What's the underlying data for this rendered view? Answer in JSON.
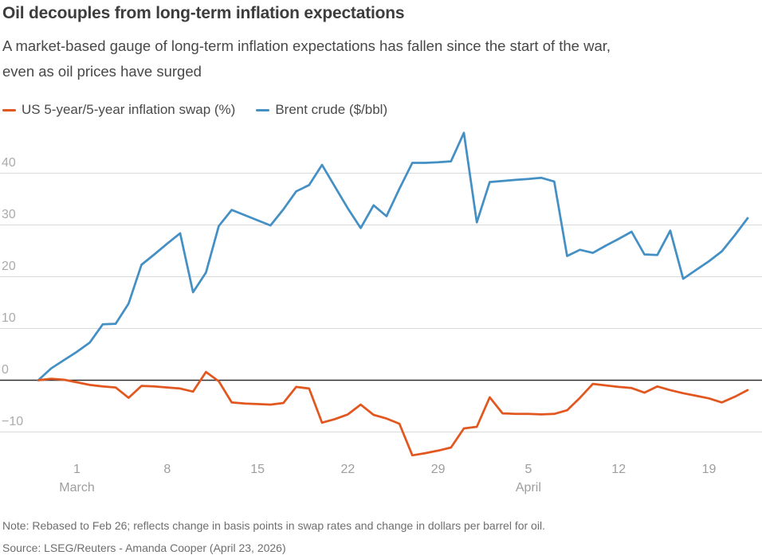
{
  "header": {
    "title": "Oil decouples from long-term inflation expectations",
    "subtitle_line1": "A market-based gauge of long-term inflation expectations has fallen since the start of the war,",
    "subtitle_line2": "even as oil prices have surged"
  },
  "footer": {
    "note": "Note: Rebased to Feb 26; reflects change in basis points in swap rates and change in dollars per barrel for oil.",
    "source": "Source: LSEG/Reuters - Amanda Cooper (April 23, 2026)"
  },
  "chart_data": {
    "type": "line",
    "x_axis": {
      "start": "Feb 26",
      "frequency": "daily",
      "ticks": [
        {
          "label": "1",
          "index": 3,
          "month": "March"
        },
        {
          "label": "8",
          "index": 10
        },
        {
          "label": "15",
          "index": 17
        },
        {
          "label": "22",
          "index": 24
        },
        {
          "label": "29",
          "index": 31
        },
        {
          "label": "5",
          "index": 38,
          "month": "April"
        },
        {
          "label": "12",
          "index": 45
        },
        {
          "label": "19",
          "index": 52
        }
      ]
    },
    "y_axis": {
      "ticks": [
        40,
        30,
        20,
        10,
        0,
        -10
      ],
      "tick_labels": [
        "40",
        "30",
        "20",
        "10",
        "0",
        "−10"
      ],
      "range": [
        -16.5,
        48.5
      ],
      "grid": "horizontal"
    },
    "grid_color": "#d9d9d9",
    "zero_line_color": "#2e2e2e",
    "series": [
      {
        "key": "swap",
        "name": "US 5-year/5-year inflation swap (%)",
        "color": "#e2571f",
        "values": [
          0,
          0.3,
          0.1,
          -0.4,
          -0.9,
          -1.2,
          -1.4,
          -3.4,
          -1.1,
          -1.2,
          -1.4,
          -1.6,
          -2.2,
          1.6,
          -0.2,
          -4.3,
          -4.5,
          -4.6,
          -4.7,
          -4.4,
          -1.3,
          -1.6,
          -8.2,
          -7.5,
          -6.6,
          -4.7,
          -6.7,
          -7.4,
          -8.4,
          -14.5,
          -14.1,
          -13.6,
          -13.0,
          -9.3,
          -9.0,
          -3.3,
          -6.4,
          -6.5,
          -6.5,
          -6.6,
          -6.5,
          -5.8,
          -3.4,
          -0.7,
          -1.0,
          -1.3,
          -1.5,
          -2.4,
          -1.2,
          -1.9,
          -2.5,
          -3.0,
          -3.5,
          -4.3,
          -3.2,
          -1.9
        ]
      },
      {
        "key": "brent",
        "name": "Brent crude ($/bbl)",
        "color": "#4490c4",
        "values": [
          0,
          2.3,
          3.9,
          5.5,
          7.3,
          10.8,
          10.9,
          14.8,
          22.3,
          24.3,
          26.4,
          28.4,
          17.0,
          20.8,
          29.8,
          32.9,
          31.9,
          30.9,
          29.9,
          33.0,
          36.5,
          37.7,
          41.6,
          37.4,
          33.2,
          29.4,
          33.8,
          31.7,
          37.0,
          42.0,
          42.0,
          42.1,
          42.3,
          47.8,
          30.5,
          38.3,
          38.5,
          38.7,
          38.9,
          39.1,
          38.4,
          24.0,
          25.2,
          24.6,
          26.0,
          27.3,
          28.7,
          24.3,
          24.2,
          28.9,
          19.6,
          21.3,
          23.0,
          24.9,
          28.0,
          31.3
        ]
      }
    ],
    "title": "Oil decouples from long-term inflation expectations",
    "xlabel": "",
    "ylabel": "",
    "legend_position": "top-left"
  }
}
